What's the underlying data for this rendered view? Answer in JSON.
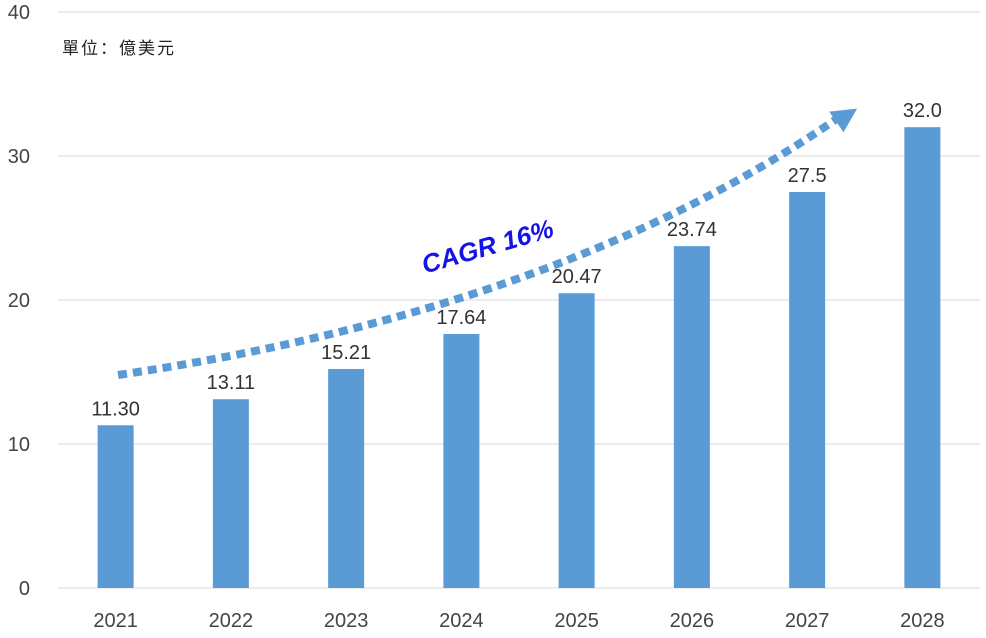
{
  "unit_label": "單位：億美元",
  "annotation": "CAGR 16%",
  "colors": {
    "bar": "#5b9bd5",
    "grid": "#d9d9d9",
    "arrow": "#5b9bd5",
    "annotation": "#1414e6"
  },
  "chart_data": {
    "type": "bar",
    "title": "",
    "xlabel": "",
    "ylabel": "",
    "categories": [
      "2021",
      "2022",
      "2023",
      "2024",
      "2025",
      "2026",
      "2027",
      "2028"
    ],
    "series": [
      {
        "values": [
          11.3,
          13.11,
          15.21,
          17.64,
          20.47,
          23.74,
          27.5,
          32.0
        ]
      }
    ],
    "data_labels": [
      "11.30",
      "13.11",
      "15.21",
      "17.64",
      "20.47",
      "23.74",
      "27.5",
      "32.0"
    ],
    "ylim": [
      0,
      40
    ],
    "yticks": [
      0,
      10,
      20,
      30,
      40
    ],
    "grid": true,
    "legend": "none"
  }
}
